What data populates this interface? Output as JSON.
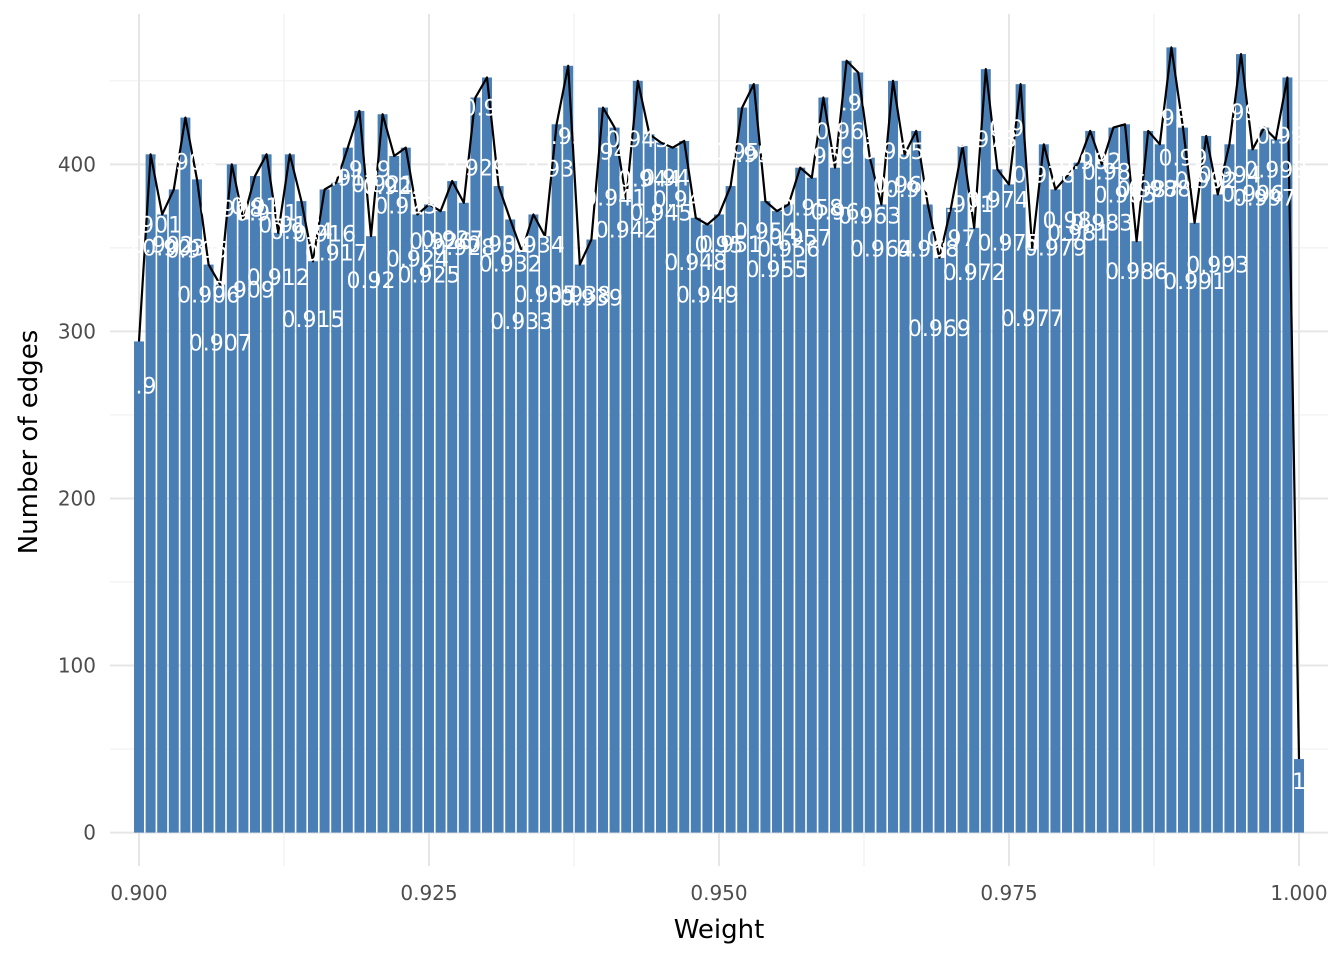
{
  "chart_data": {
    "type": "bar",
    "xlabel": "Weight",
    "ylabel": "Number of edges",
    "xlim": [
      0.8975,
      1.0025
    ],
    "ylim": [
      -20,
      490
    ],
    "x_ticks": [
      {
        "value": 0.9,
        "label": "0.900"
      },
      {
        "value": 0.925,
        "label": "0.925"
      },
      {
        "value": 0.95,
        "label": "0.950"
      },
      {
        "value": 0.975,
        "label": "0.975"
      },
      {
        "value": 1.0,
        "label": "1.000"
      }
    ],
    "y_ticks": [
      {
        "value": 0,
        "label": "0"
      },
      {
        "value": 100,
        "label": "100"
      },
      {
        "value": 200,
        "label": "200"
      },
      {
        "value": 300,
        "label": "300"
      },
      {
        "value": 400,
        "label": "400"
      }
    ],
    "grid": true,
    "bar_color": "#4a7fb5",
    "line_color": "#000000",
    "label_color": "#ffffff",
    "bars": [
      {
        "x": 0.9,
        "y": 294,
        "label": "0.9"
      },
      {
        "x": 0.901,
        "y": 406,
        "label": "0.901"
      },
      {
        "x": 0.902,
        "y": 370,
        "label": "0.902"
      },
      {
        "x": 0.903,
        "y": 385,
        "label": "0.903"
      },
      {
        "x": 0.904,
        "y": 428,
        "label": "0.904"
      },
      {
        "x": 0.905,
        "y": 391,
        "label": "0.905"
      },
      {
        "x": 0.906,
        "y": 340,
        "label": "0.906"
      },
      {
        "x": 0.907,
        "y": 328,
        "label": "0.907"
      },
      {
        "x": 0.908,
        "y": 400,
        "label": "0.908"
      },
      {
        "x": 0.909,
        "y": 367,
        "label": "0.909"
      },
      {
        "x": 0.91,
        "y": 393,
        "label": "0.91"
      },
      {
        "x": 0.911,
        "y": 406,
        "label": "0.911"
      },
      {
        "x": 0.912,
        "y": 359,
        "label": "0.912"
      },
      {
        "x": 0.913,
        "y": 406,
        "label": "0.913"
      },
      {
        "x": 0.914,
        "y": 378,
        "label": "0.914"
      },
      {
        "x": 0.915,
        "y": 342,
        "label": "0.915"
      },
      {
        "x": 0.916,
        "y": 385,
        "label": "0.916"
      },
      {
        "x": 0.917,
        "y": 389,
        "label": "0.917"
      },
      {
        "x": 0.918,
        "y": 410,
        "label": "0.918"
      },
      {
        "x": 0.919,
        "y": 432,
        "label": "0.919"
      },
      {
        "x": 0.92,
        "y": 357,
        "label": "0.92"
      },
      {
        "x": 0.921,
        "y": 430,
        "label": "0.921"
      },
      {
        "x": 0.922,
        "y": 405,
        "label": "0.922"
      },
      {
        "x": 0.923,
        "y": 410,
        "label": "0.923"
      },
      {
        "x": 0.924,
        "y": 370,
        "label": "0.924"
      },
      {
        "x": 0.925,
        "y": 376,
        "label": "0.925"
      },
      {
        "x": 0.926,
        "y": 372,
        "label": "0.926"
      },
      {
        "x": 0.927,
        "y": 390,
        "label": "0.927"
      },
      {
        "x": 0.928,
        "y": 377,
        "label": "0.928"
      },
      {
        "x": 0.929,
        "y": 440,
        "label": "0.929"
      },
      {
        "x": 0.93,
        "y": 452,
        "label": "0.93"
      },
      {
        "x": 0.931,
        "y": 387,
        "label": "0.931"
      },
      {
        "x": 0.932,
        "y": 367,
        "label": "0.932"
      },
      {
        "x": 0.933,
        "y": 348,
        "label": "0.933"
      },
      {
        "x": 0.934,
        "y": 370,
        "label": "0.934"
      },
      {
        "x": 0.935,
        "y": 357,
        "label": "0.935"
      },
      {
        "x": 0.936,
        "y": 424,
        "label": "0.936"
      },
      {
        "x": 0.937,
        "y": 459,
        "label": "0.937"
      },
      {
        "x": 0.938,
        "y": 340,
        "label": "0.938"
      },
      {
        "x": 0.939,
        "y": 355,
        "label": "0.939"
      },
      {
        "x": 0.94,
        "y": 434,
        "label": "0.94"
      },
      {
        "x": 0.941,
        "y": 422,
        "label": "0.941"
      },
      {
        "x": 0.942,
        "y": 379,
        "label": "0.942"
      },
      {
        "x": 0.943,
        "y": 450,
        "label": "0.943"
      },
      {
        "x": 0.944,
        "y": 418,
        "label": "0.944"
      },
      {
        "x": 0.945,
        "y": 413,
        "label": "0.945"
      },
      {
        "x": 0.946,
        "y": 410,
        "label": "0.946"
      },
      {
        "x": 0.947,
        "y": 414,
        "label": "0.947"
      },
      {
        "x": 0.948,
        "y": 368,
        "label": "0.948"
      },
      {
        "x": 0.949,
        "y": 364,
        "label": "0.949"
      },
      {
        "x": 0.95,
        "y": 370,
        "label": "0.95"
      },
      {
        "x": 0.951,
        "y": 387,
        "label": "0.951"
      },
      {
        "x": 0.952,
        "y": 434,
        "label": "0.952"
      },
      {
        "x": 0.953,
        "y": 448,
        "label": "0.953"
      },
      {
        "x": 0.954,
        "y": 378,
        "label": "0.954"
      },
      {
        "x": 0.955,
        "y": 372,
        "label": "0.955"
      },
      {
        "x": 0.956,
        "y": 376,
        "label": "0.956"
      },
      {
        "x": 0.957,
        "y": 398,
        "label": "0.957"
      },
      {
        "x": 0.958,
        "y": 392,
        "label": "0.958"
      },
      {
        "x": 0.959,
        "y": 440,
        "label": "0.959"
      },
      {
        "x": 0.96,
        "y": 398,
        "label": "0.96"
      },
      {
        "x": 0.961,
        "y": 462,
        "label": "0.961"
      },
      {
        "x": 0.962,
        "y": 455,
        "label": "0.962"
      },
      {
        "x": 0.963,
        "y": 404,
        "label": "0.963"
      },
      {
        "x": 0.964,
        "y": 376,
        "label": "0.964"
      },
      {
        "x": 0.965,
        "y": 450,
        "label": "0.965"
      },
      {
        "x": 0.966,
        "y": 406,
        "label": "0.966"
      },
      {
        "x": 0.967,
        "y": 420,
        "label": "0.967"
      },
      {
        "x": 0.968,
        "y": 376,
        "label": "0.968"
      },
      {
        "x": 0.969,
        "y": 344,
        "label": "0.969"
      },
      {
        "x": 0.97,
        "y": 374,
        "label": "0.97"
      },
      {
        "x": 0.971,
        "y": 411,
        "label": "0.971"
      },
      {
        "x": 0.972,
        "y": 362,
        "label": "0.972"
      },
      {
        "x": 0.973,
        "y": 457,
        "label": "0.973"
      },
      {
        "x": 0.974,
        "y": 397,
        "label": "0.974"
      },
      {
        "x": 0.975,
        "y": 388,
        "label": "0.975"
      },
      {
        "x": 0.976,
        "y": 448,
        "label": "0.976"
      },
      {
        "x": 0.977,
        "y": 350,
        "label": "0.977"
      },
      {
        "x": 0.978,
        "y": 412,
        "label": "0.978"
      },
      {
        "x": 0.979,
        "y": 385,
        "label": "0.979"
      },
      {
        "x": 0.98,
        "y": 393,
        "label": "0.98"
      },
      {
        "x": 0.981,
        "y": 401,
        "label": "0.981"
      },
      {
        "x": 0.982,
        "y": 420,
        "label": "0.982"
      },
      {
        "x": 0.983,
        "y": 400,
        "label": "0.983"
      },
      {
        "x": 0.984,
        "y": 422,
        "label": "0.984"
      },
      {
        "x": 0.985,
        "y": 424,
        "label": "0.985"
      },
      {
        "x": 0.986,
        "y": 354,
        "label": "0.986"
      },
      {
        "x": 0.987,
        "y": 420,
        "label": "0.987"
      },
      {
        "x": 0.988,
        "y": 412,
        "label": "0.988"
      },
      {
        "x": 0.989,
        "y": 470,
        "label": "0.989"
      },
      {
        "x": 0.99,
        "y": 422,
        "label": "0.99"
      },
      {
        "x": 0.991,
        "y": 365,
        "label": "0.991"
      },
      {
        "x": 0.992,
        "y": 417,
        "label": "0.992"
      },
      {
        "x": 0.993,
        "y": 382,
        "label": "0.993"
      },
      {
        "x": 0.994,
        "y": 412,
        "label": "0.994"
      },
      {
        "x": 0.995,
        "y": 466,
        "label": "0.995"
      },
      {
        "x": 0.996,
        "y": 409,
        "label": "0.996"
      },
      {
        "x": 0.997,
        "y": 422,
        "label": "0.997"
      },
      {
        "x": 0.998,
        "y": 415,
        "label": "0.998"
      },
      {
        "x": 0.999,
        "y": 452,
        "label": "0.999"
      },
      {
        "x": 1.0,
        "y": 44,
        "label": "1"
      }
    ]
  }
}
